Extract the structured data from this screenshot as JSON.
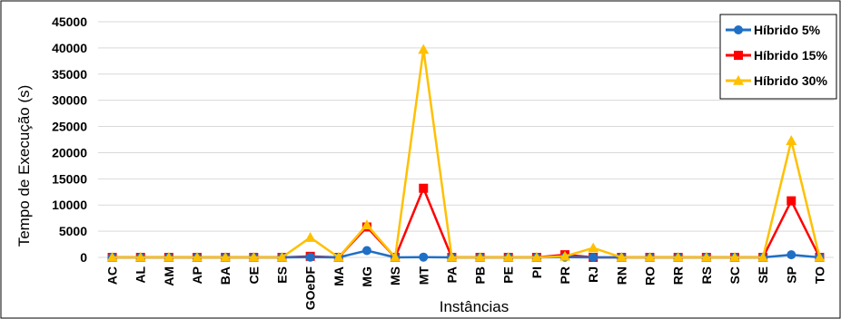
{
  "chart_data": {
    "type": "line",
    "title": "",
    "xlabel": "Instâncias",
    "ylabel": "Tempo de Execução (s)",
    "ylim": [
      0,
      45000
    ],
    "yticks": [
      0,
      5000,
      10000,
      15000,
      20000,
      25000,
      30000,
      35000,
      40000,
      45000
    ],
    "grid": "horizontal",
    "legend_position": "top-right",
    "categories": [
      "AC",
      "AL",
      "AM",
      "AP",
      "BA",
      "CE",
      "ES",
      "GOeDF",
      "MA",
      "MG",
      "MS",
      "MT",
      "PA",
      "PB",
      "PE",
      "PI",
      "PR",
      "RJ",
      "RN",
      "RO",
      "RR",
      "RS",
      "SC",
      "SE",
      "SP",
      "TO"
    ],
    "series": [
      {
        "name": "Híbrido 5%",
        "color": "#1f6fc5",
        "marker": "circle",
        "values": [
          0,
          0,
          0,
          0,
          0,
          0,
          0,
          50,
          0,
          1300,
          0,
          50,
          0,
          0,
          0,
          0,
          50,
          0,
          0,
          0,
          0,
          0,
          0,
          0,
          500,
          0
        ]
      },
      {
        "name": "Híbrido 15%",
        "color": "#ff0000",
        "marker": "square",
        "values": [
          0,
          0,
          0,
          0,
          0,
          0,
          0,
          200,
          0,
          5800,
          0,
          13200,
          0,
          0,
          0,
          0,
          500,
          0,
          0,
          0,
          0,
          0,
          0,
          0,
          10800,
          0
        ]
      },
      {
        "name": "Híbrido 30%",
        "color": "#ffc000",
        "marker": "triangle",
        "values": [
          0,
          0,
          0,
          0,
          0,
          0,
          0,
          3800,
          0,
          6200,
          0,
          39700,
          0,
          0,
          0,
          0,
          200,
          1800,
          0,
          0,
          0,
          0,
          0,
          0,
          22300,
          0
        ]
      }
    ]
  }
}
